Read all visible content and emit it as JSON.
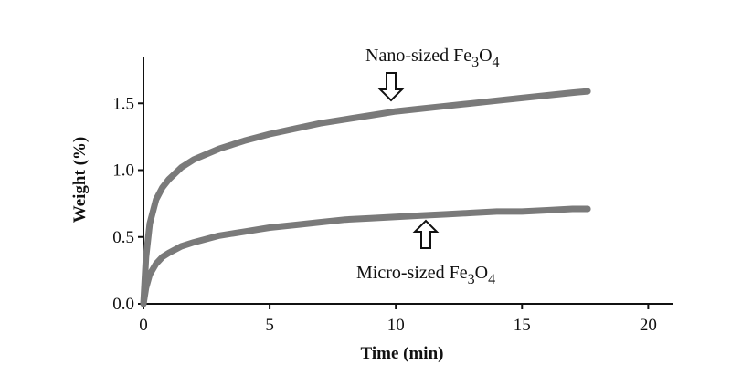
{
  "chart_data": {
    "type": "line",
    "title": "",
    "xlabel": "Time (min)",
    "ylabel": "Weight (%)",
    "xlim": [
      0,
      21
    ],
    "ylim": [
      0,
      1.85
    ],
    "xticks": [
      "0",
      "5",
      "10",
      "15",
      "20"
    ],
    "yticks": [
      "0.0",
      "0.5",
      "1.0",
      "1.5"
    ],
    "grid": false,
    "legend": "none",
    "series": [
      {
        "name": "Nano-sized Fe3O4",
        "color": "#7a7a7a",
        "x": [
          0,
          0.1,
          0.25,
          0.5,
          0.75,
          1,
          1.5,
          2,
          3,
          4,
          5,
          6,
          7,
          8,
          9,
          10,
          11,
          12,
          13,
          14,
          15,
          16,
          17,
          17.6
        ],
        "y": [
          0.0,
          0.35,
          0.6,
          0.78,
          0.87,
          0.93,
          1.02,
          1.08,
          1.16,
          1.22,
          1.27,
          1.31,
          1.35,
          1.38,
          1.41,
          1.44,
          1.46,
          1.48,
          1.5,
          1.52,
          1.54,
          1.56,
          1.58,
          1.59
        ]
      },
      {
        "name": "Micro-sized Fe3O4",
        "color": "#7a7a7a",
        "x": [
          0,
          0.1,
          0.25,
          0.5,
          0.75,
          1,
          1.5,
          2,
          3,
          4,
          5,
          6,
          7,
          8,
          9,
          10,
          11,
          12,
          13,
          14,
          15,
          16,
          17,
          17.6
        ],
        "y": [
          0.0,
          0.12,
          0.22,
          0.3,
          0.35,
          0.38,
          0.43,
          0.46,
          0.51,
          0.54,
          0.57,
          0.59,
          0.61,
          0.63,
          0.64,
          0.65,
          0.66,
          0.67,
          0.68,
          0.69,
          0.69,
          0.7,
          0.71,
          0.71
        ]
      }
    ],
    "annotations": [
      {
        "text_main": "Nano-sized Fe",
        "sub1": "3",
        "mid": "O",
        "sub2": "4",
        "arrow": "down"
      },
      {
        "text_main": "Micro-sized Fe",
        "sub1": "3",
        "mid": "O",
        "sub2": "4",
        "arrow": "up"
      }
    ]
  }
}
